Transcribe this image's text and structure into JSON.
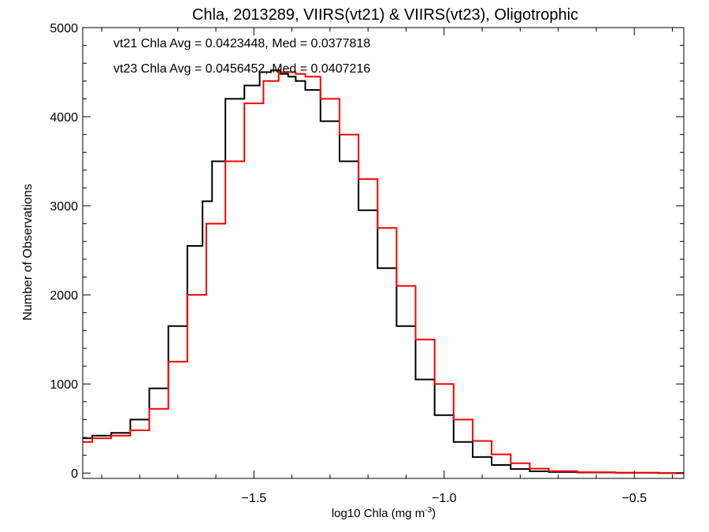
{
  "chart_data": {
    "type": "line",
    "title": "Chla, 2013289, VIIRS(vt21) & VIIRS(vt23), Oligotrophic",
    "xlabel": "log10 Chla (mg m",
    "xlabel_superscript": "-3",
    "xlabel_suffix": ")",
    "ylabel": "Number of Observations",
    "xlim": [
      -1.95,
      -0.37
    ],
    "ylim": [
      -60,
      5000
    ],
    "x_ticks": [
      {
        "value": -1.5,
        "label": "−1.5"
      },
      {
        "value": -1.0,
        "label": "−1.0"
      },
      {
        "value": -0.5,
        "label": "−0.5"
      }
    ],
    "y_ticks": [
      {
        "value": 0,
        "label": "0"
      },
      {
        "value": 1000,
        "label": "1000"
      },
      {
        "value": 2000,
        "label": "2000"
      },
      {
        "value": 3000,
        "label": "3000"
      },
      {
        "value": 4000,
        "label": "4000"
      },
      {
        "value": 5000,
        "label": "5000"
      }
    ],
    "grid": false,
    "legend_position": "top-left",
    "series": [
      {
        "name": "vt21 Chla Avg = 0.0423448, Med = 0.0377818",
        "color": "#000000",
        "x": [
          -1.95,
          -1.9,
          -1.85,
          -1.8,
          -1.75,
          -1.7,
          -1.65,
          -1.62,
          -1.6,
          -1.55,
          -1.5,
          -1.47,
          -1.44,
          -1.42,
          -1.4,
          -1.38,
          -1.35,
          -1.3,
          -1.25,
          -1.2,
          -1.15,
          -1.1,
          -1.05,
          -1.0,
          -0.95,
          -0.9,
          -0.85,
          -0.8,
          -0.75,
          -0.7,
          -0.6,
          -0.5,
          -0.37
        ],
        "values": [
          390,
          420,
          450,
          600,
          950,
          1650,
          2550,
          3050,
          3500,
          4200,
          4350,
          4500,
          4520,
          4480,
          4450,
          4400,
          4300,
          3950,
          3500,
          2950,
          2300,
          1650,
          1050,
          650,
          350,
          180,
          90,
          45,
          20,
          12,
          6,
          3,
          0
        ]
      },
      {
        "name": "vt23 Chla Avg = 0.0456452, Med = 0.0407216",
        "color": "#ff0000",
        "x": [
          -1.95,
          -1.9,
          -1.85,
          -1.8,
          -1.75,
          -1.7,
          -1.65,
          -1.6,
          -1.55,
          -1.5,
          -1.45,
          -1.42,
          -1.4,
          -1.38,
          -1.35,
          -1.3,
          -1.25,
          -1.2,
          -1.15,
          -1.1,
          -1.05,
          -1.0,
          -0.95,
          -0.9,
          -0.85,
          -0.8,
          -0.75,
          -0.7,
          -0.6,
          -0.5,
          -0.37
        ],
        "values": [
          350,
          390,
          420,
          480,
          720,
          1250,
          2000,
          2800,
          3500,
          4150,
          4400,
          4500,
          4500,
          4480,
          4450,
          4200,
          3800,
          3300,
          2750,
          2100,
          1500,
          1000,
          600,
          360,
          210,
          110,
          50,
          22,
          10,
          4,
          0
        ]
      }
    ]
  }
}
